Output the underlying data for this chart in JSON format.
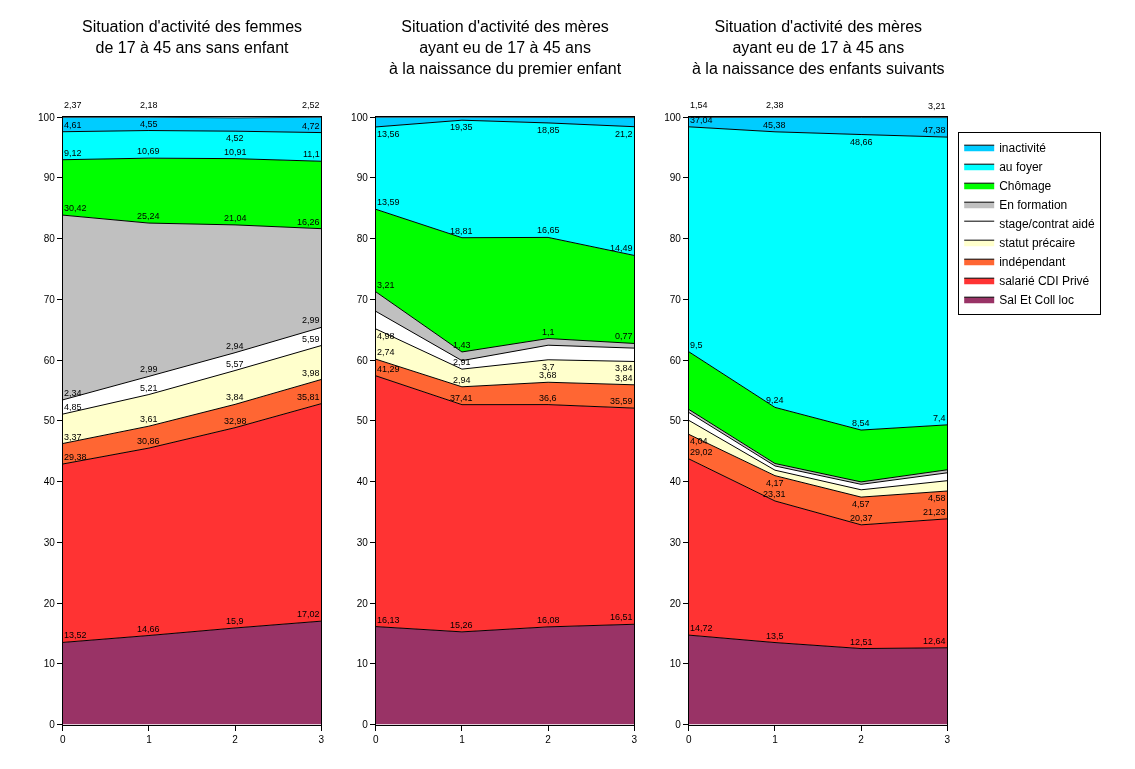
{
  "chart_data": [
    {
      "type": "area",
      "stacked": true,
      "title": "Situation d'activité des femmes\nde 17 à 45 ans sans enfant",
      "x": [
        0,
        1,
        2,
        3
      ],
      "xlim": [
        0,
        3
      ],
      "xticks": [
        0,
        1,
        2,
        3
      ],
      "ylim": [
        0,
        100
      ],
      "yticks": [
        0,
        10,
        20,
        30,
        40,
        50,
        60,
        70,
        80,
        90,
        100
      ],
      "series": [
        {
          "color": "#993366",
          "values": [
            13.52,
            14.66,
            15.9,
            17.02
          ],
          "value_labels": [
            "13,52",
            "14,66",
            "15,9",
            "17,02"
          ]
        },
        {
          "color": "#ff3333",
          "values": [
            29.38,
            30.86,
            32.98,
            35.81
          ],
          "value_labels": [
            "29,38",
            "30,86",
            "32,98",
            "35,81"
          ]
        },
        {
          "color": "#ff6633",
          "values": [
            3.37,
            3.61,
            3.84,
            3.98
          ],
          "value_labels": [
            "3,37",
            "3,61",
            "3,84",
            "3,98"
          ]
        },
        {
          "color": "#ffffcc",
          "values": [
            4.85,
            5.21,
            5.57,
            5.59
          ],
          "value_labels": [
            "4,85",
            "5,21",
            "5,57",
            "5,59"
          ]
        },
        {
          "color": "#ffffff",
          "values": [
            2.34,
            2.99,
            2.94,
            2.99
          ],
          "value_labels": [
            "2,34",
            "2,99",
            "2,94",
            "2,99"
          ]
        },
        {
          "color": "#c0c0c0",
          "values": [
            30.42,
            25.24,
            21.04,
            16.26
          ],
          "value_labels": [
            "30,42",
            "25,24",
            "21,04",
            "16,26"
          ]
        },
        {
          "color": "#00ff00",
          "values": [
            9.12,
            10.69,
            10.91,
            11.1
          ],
          "value_labels": [
            "9,12",
            "10,69",
            "10,91",
            "11,1"
          ]
        },
        {
          "color": "#00ffff",
          "values": [
            4.61,
            4.55,
            4.52,
            4.72
          ],
          "value_labels": [
            "4,61",
            "4,55",
            "4,52",
            "4,72"
          ]
        },
        {
          "color": "#00ccff",
          "values": [
            2.37,
            2.18,
            2.2,
            2.52
          ],
          "value_labels": [
            "2,37",
            "2,18",
            null,
            "2,52"
          ]
        }
      ]
    },
    {
      "type": "area",
      "stacked": true,
      "title": "Situation d'activité des mères\nayant eu de 17 à 45 ans\nà la naissance du premier enfant",
      "x": [
        0,
        1,
        2,
        3
      ],
      "xlim": [
        0,
        3
      ],
      "xticks": [
        0,
        1,
        2,
        3
      ],
      "ylim": [
        0,
        100
      ],
      "yticks": [
        0,
        10,
        20,
        30,
        40,
        50,
        60,
        70,
        80,
        90,
        100
      ],
      "series": [
        {
          "color": "#993366",
          "values": [
            16.13,
            15.26,
            16.08,
            16.51
          ],
          "value_labels": [
            "16,13",
            "15,26",
            "16,08",
            "16,51"
          ]
        },
        {
          "color": "#ff3333",
          "values": [
            41.29,
            37.41,
            36.6,
            35.59
          ],
          "value_labels": [
            "41,29",
            "37,41",
            "36,6",
            "35,59"
          ]
        },
        {
          "color": "#ff6633",
          "values": [
            2.74,
            2.94,
            3.68,
            3.84
          ],
          "value_labels": [
            "2,74",
            "2,94",
            "3,68",
            "3,84"
          ]
        },
        {
          "color": "#ffffcc",
          "values": [
            4.98,
            2.91,
            3.7,
            3.84
          ],
          "value_labels": [
            "4,98",
            "2,91",
            "3,7",
            "3,84"
          ]
        },
        {
          "color": "#ffffff",
          "values": [
            2.9,
            1.4,
            2.4,
            2.2
          ],
          "value_labels": [
            null,
            null,
            null,
            null
          ]
        },
        {
          "color": "#c0c0c0",
          "values": [
            3.21,
            1.43,
            1.1,
            0.77
          ],
          "value_labels": [
            "3,21",
            "1,43",
            "1,1",
            "0,77"
          ]
        },
        {
          "color": "#00ff00",
          "values": [
            13.59,
            18.81,
            16.65,
            14.49
          ],
          "value_labels": [
            "13,59",
            "18,81",
            "16,65",
            "14,49"
          ]
        },
        {
          "color": "#00ffff",
          "values": [
            13.56,
            19.35,
            18.85,
            21.2
          ],
          "value_labels": [
            "13,56",
            "19,35",
            "18,85",
            "21,2"
          ]
        },
        {
          "color": "#00ccff",
          "values": [
            1.6,
            0.5,
            0.9,
            1.5
          ],
          "value_labels": [
            null,
            null,
            null,
            null
          ]
        }
      ]
    },
    {
      "type": "area",
      "stacked": true,
      "title": "Situation d'activité des mères\nayant eu de 17 à 45 ans\nà la naissance des enfants suivants",
      "x": [
        0,
        1,
        2,
        3
      ],
      "xlim": [
        0,
        3
      ],
      "xticks": [
        0,
        1,
        2,
        3
      ],
      "ylim": [
        0,
        100
      ],
      "yticks": [
        0,
        10,
        20,
        30,
        40,
        50,
        60,
        70,
        80,
        90,
        100
      ],
      "legend": "right",
      "series": [
        {
          "name": "Sal Et Coll loc",
          "color": "#993366",
          "values": [
            14.72,
            13.5,
            12.51,
            12.64
          ],
          "value_labels": [
            "14,72",
            "13,5",
            "12,51",
            "12,64"
          ]
        },
        {
          "name": "salarié CDI Privé",
          "color": "#ff3333",
          "values": [
            29.02,
            23.31,
            20.37,
            21.23
          ],
          "value_labels": [
            "29,02",
            "23,31",
            "20,37",
            "21,23"
          ]
        },
        {
          "name": "indépendant",
          "color": "#ff6633",
          "values": [
            4.04,
            4.17,
            4.57,
            4.58
          ],
          "value_labels": [
            "4,04",
            "4,17",
            "4,57",
            "4,58"
          ]
        },
        {
          "name": "statut précaire",
          "color": "#ffffcc",
          "values": [
            2.3,
            0.9,
            1.2,
            1.7
          ],
          "value_labels": [
            null,
            null,
            null,
            null
          ]
        },
        {
          "name": "stage/contrat aidé",
          "color": "#ffffff",
          "values": [
            1.3,
            0.7,
            0.9,
            1.3
          ],
          "value_labels": [
            null,
            null,
            null,
            null
          ]
        },
        {
          "name": "En formation",
          "color": "#c0c0c0",
          "values": [
            0.5,
            0.4,
            0.4,
            0.5
          ],
          "value_labels": [
            null,
            null,
            null,
            null
          ]
        },
        {
          "name": "Chômage",
          "color": "#00ff00",
          "values": [
            9.5,
            9.24,
            8.54,
            7.4
          ],
          "value_labels": [
            "9,5",
            "9,24",
            "8,54",
            "7,4"
          ]
        },
        {
          "name": "au foyer",
          "color": "#00ffff",
          "values": [
            37.04,
            45.38,
            48.66,
            47.38
          ],
          "value_labels": [
            "37,04",
            "45,38",
            "48,66",
            "47,38"
          ]
        },
        {
          "name": "inactivité",
          "color": "#00ccff",
          "values": [
            1.54,
            2.38,
            2.8,
            3.21
          ],
          "value_labels": [
            "1,54",
            "2,38",
            null,
            "3,21"
          ]
        }
      ]
    }
  ]
}
